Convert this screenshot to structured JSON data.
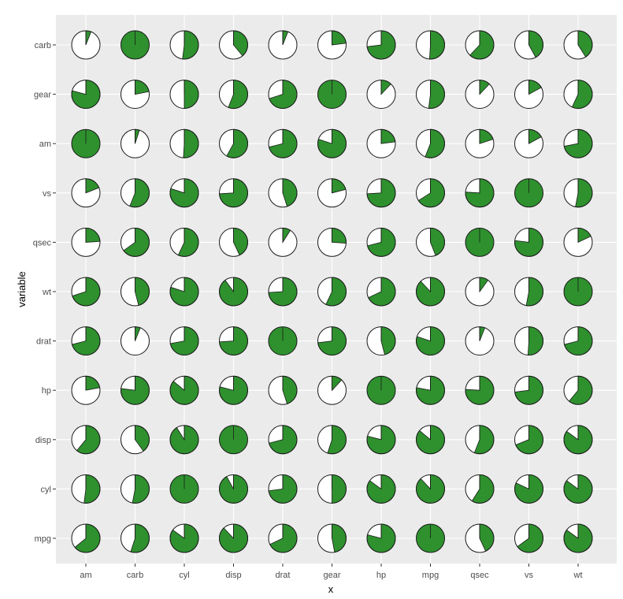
{
  "chart_data": {
    "type": "pie-matrix",
    "xlabel": "x",
    "ylabel": "variable",
    "x_categories": [
      "am",
      "carb",
      "cyl",
      "disp",
      "drat",
      "gear",
      "hp",
      "mpg",
      "qsec",
      "vs",
      "wt"
    ],
    "y_categories": [
      "mpg",
      "cyl",
      "disp",
      "hp",
      "drat",
      "wt",
      "qsec",
      "vs",
      "am",
      "gear",
      "carb"
    ],
    "grid": true,
    "colors": {
      "panel": "#ebebeb",
      "grid": "#ffffff",
      "fill": "#2e912e",
      "empty": "#ffffff",
      "stroke": "#1a1a1a"
    },
    "fractions": {
      "carb": [
        0.06,
        1.0,
        0.52,
        0.39,
        0.06,
        0.23,
        0.73,
        0.51,
        0.62,
        0.42,
        0.41
      ],
      "gear": [
        0.79,
        0.22,
        0.5,
        0.56,
        0.7,
        1.0,
        0.12,
        0.52,
        0.12,
        0.17,
        0.57
      ],
      "am": [
        1.0,
        0.05,
        0.51,
        0.58,
        0.71,
        0.8,
        0.23,
        0.56,
        0.2,
        0.17,
        0.72
      ],
      "vs": [
        0.19,
        0.56,
        0.8,
        0.74,
        0.45,
        0.21,
        0.74,
        0.66,
        0.76,
        1.0,
        0.53
      ],
      "qsec": [
        0.24,
        0.65,
        0.57,
        0.43,
        0.09,
        0.26,
        0.71,
        0.44,
        1.0,
        0.77,
        0.18
      ],
      "wt": [
        0.7,
        0.46,
        0.8,
        0.9,
        0.74,
        0.57,
        0.68,
        0.88,
        0.1,
        0.53,
        1.0
      ],
      "drat": [
        0.71,
        0.06,
        0.72,
        0.74,
        1.0,
        0.73,
        0.46,
        0.8,
        0.06,
        0.51,
        0.71
      ],
      "hp": [
        0.22,
        0.77,
        0.86,
        0.79,
        0.45,
        0.12,
        1.0,
        0.78,
        0.76,
        0.73,
        0.61
      ],
      "disp": [
        0.61,
        0.4,
        0.91,
        1.0,
        0.71,
        0.55,
        0.79,
        0.86,
        0.56,
        0.69,
        0.85
      ],
      "cyl": [
        0.52,
        0.53,
        1.0,
        0.92,
        0.73,
        0.5,
        0.85,
        0.88,
        0.59,
        0.82,
        0.85
      ],
      "mpg": [
        0.64,
        0.55,
        0.85,
        0.88,
        0.68,
        0.47,
        0.79,
        1.0,
        0.43,
        0.65,
        0.85
      ]
    }
  }
}
